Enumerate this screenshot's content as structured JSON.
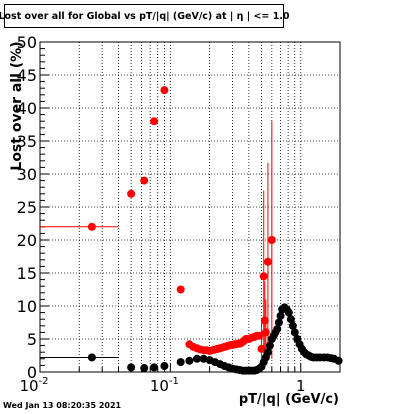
{
  "chart_data": {
    "type": "scatter",
    "title": "Lost over all for Global vs pT/|q| (GeV/c) at |  η | <= 1.0",
    "xlabel": "pT/|q| (GeV/c)",
    "ylabel": "Lost over all (%)",
    "xscale": "log",
    "xlim": [
      0.01,
      2.0
    ],
    "ylim": [
      0,
      50
    ],
    "grid": true,
    "x_tick_labels": [
      {
        "value": 0.01,
        "base": "10",
        "exp": "-2"
      },
      {
        "value": 0.1,
        "base": "10",
        "exp": "-1"
      },
      {
        "value": 1,
        "base": "1",
        "exp": ""
      }
    ],
    "y_ticks": [
      0,
      5,
      10,
      15,
      20,
      25,
      30,
      35,
      40,
      45,
      50
    ],
    "series": [
      {
        "color": "#ff0000",
        "points": [
          {
            "x": 0.025,
            "y": 22.0,
            "xlo": 0.01,
            "xhi": 0.04
          },
          {
            "x": 0.05,
            "y": 27.0
          },
          {
            "x": 0.063,
            "y": 29.0
          },
          {
            "x": 0.075,
            "y": 38.0
          },
          {
            "x": 0.09,
            "y": 42.7
          },
          {
            "x": 0.12,
            "y": 12.5
          },
          {
            "x": 0.14,
            "y": 4.2
          },
          {
            "x": 0.15,
            "y": 3.8
          },
          {
            "x": 0.16,
            "y": 3.6
          },
          {
            "x": 0.17,
            "y": 3.4
          },
          {
            "x": 0.18,
            "y": 3.3
          },
          {
            "x": 0.19,
            "y": 3.3
          },
          {
            "x": 0.2,
            "y": 3.2
          },
          {
            "x": 0.21,
            "y": 3.3
          },
          {
            "x": 0.22,
            "y": 3.4
          },
          {
            "x": 0.23,
            "y": 3.5
          },
          {
            "x": 0.24,
            "y": 3.6
          },
          {
            "x": 0.25,
            "y": 3.7
          },
          {
            "x": 0.26,
            "y": 3.8
          },
          {
            "x": 0.27,
            "y": 3.9
          },
          {
            "x": 0.28,
            "y": 4.0
          },
          {
            "x": 0.29,
            "y": 4.1
          },
          {
            "x": 0.3,
            "y": 4.1
          },
          {
            "x": 0.31,
            "y": 4.2
          },
          {
            "x": 0.32,
            "y": 4.2
          },
          {
            "x": 0.33,
            "y": 4.3
          },
          {
            "x": 0.34,
            "y": 4.3
          },
          {
            "x": 0.35,
            "y": 4.4
          },
          {
            "x": 0.36,
            "y": 4.6
          },
          {
            "x": 0.37,
            "y": 4.8
          },
          {
            "x": 0.38,
            "y": 5.0
          },
          {
            "x": 0.39,
            "y": 5.0
          },
          {
            "x": 0.4,
            "y": 5.0
          },
          {
            "x": 0.42,
            "y": 5.2
          },
          {
            "x": 0.44,
            "y": 5.3
          },
          {
            "x": 0.46,
            "y": 5.5
          },
          {
            "x": 0.48,
            "y": 5.5
          },
          {
            "x": 0.5,
            "y": 3.5,
            "yerr": 4
          },
          {
            "x": 0.52,
            "y": 14.5,
            "yerr": 13
          },
          {
            "x": 0.53,
            "y": 7.8,
            "yerr": 6
          },
          {
            "x": 0.54,
            "y": 6.0,
            "yerr": 5
          },
          {
            "x": 0.56,
            "y": 16.7,
            "yerr": 15
          },
          {
            "x": 0.6,
            "y": 20.0,
            "yerr": 18
          }
        ]
      },
      {
        "color": "#000000",
        "points": [
          {
            "x": 0.025,
            "y": 2.2,
            "xlo": 0.01,
            "xhi": 0.04
          },
          {
            "x": 0.05,
            "y": 0.7
          },
          {
            "x": 0.063,
            "y": 0.6
          },
          {
            "x": 0.075,
            "y": 0.7
          },
          {
            "x": 0.09,
            "y": 0.9
          },
          {
            "x": 0.12,
            "y": 1.5
          },
          {
            "x": 0.14,
            "y": 1.7
          },
          {
            "x": 0.16,
            "y": 2.0
          },
          {
            "x": 0.18,
            "y": 2.0
          },
          {
            "x": 0.2,
            "y": 1.8
          },
          {
            "x": 0.22,
            "y": 1.5
          },
          {
            "x": 0.24,
            "y": 1.2
          },
          {
            "x": 0.26,
            "y": 0.9
          },
          {
            "x": 0.28,
            "y": 0.7
          },
          {
            "x": 0.3,
            "y": 0.5
          },
          {
            "x": 0.32,
            "y": 0.4
          },
          {
            "x": 0.34,
            "y": 0.3
          },
          {
            "x": 0.36,
            "y": 0.2
          },
          {
            "x": 0.38,
            "y": 0.2
          },
          {
            "x": 0.4,
            "y": 0.2
          },
          {
            "x": 0.42,
            "y": 0.2
          },
          {
            "x": 0.44,
            "y": 0.2
          },
          {
            "x": 0.46,
            "y": 0.3
          },
          {
            "x": 0.48,
            "y": 0.5
          },
          {
            "x": 0.5,
            "y": 0.8
          },
          {
            "x": 0.52,
            "y": 1.5
          },
          {
            "x": 0.54,
            "y": 2.2
          },
          {
            "x": 0.56,
            "y": 3.0
          },
          {
            "x": 0.58,
            "y": 4.0
          },
          {
            "x": 0.6,
            "y": 5.0
          },
          {
            "x": 0.62,
            "y": 5.5
          },
          {
            "x": 0.64,
            "y": 6.0
          },
          {
            "x": 0.66,
            "y": 6.5
          },
          {
            "x": 0.68,
            "y": 7.5
          },
          {
            "x": 0.7,
            "y": 8.5
          },
          {
            "x": 0.72,
            "y": 9.5
          },
          {
            "x": 0.75,
            "y": 9.8
          },
          {
            "x": 0.78,
            "y": 9.5
          },
          {
            "x": 0.81,
            "y": 9.0
          },
          {
            "x": 0.84,
            "y": 8.0
          },
          {
            "x": 0.87,
            "y": 7.0
          },
          {
            "x": 0.9,
            "y": 6.0
          },
          {
            "x": 0.94,
            "y": 5.0
          },
          {
            "x": 0.98,
            "y": 4.2
          },
          {
            "x": 1.02,
            "y": 3.5
          },
          {
            "x": 1.06,
            "y": 3.0
          },
          {
            "x": 1.1,
            "y": 2.7
          },
          {
            "x": 1.15,
            "y": 2.5
          },
          {
            "x": 1.2,
            "y": 2.3
          },
          {
            "x": 1.25,
            "y": 2.2
          },
          {
            "x": 1.32,
            "y": 2.2
          },
          {
            "x": 1.4,
            "y": 2.2
          },
          {
            "x": 1.5,
            "y": 2.2
          },
          {
            "x": 1.6,
            "y": 2.2
          },
          {
            "x": 1.7,
            "y": 2.1
          },
          {
            "x": 1.8,
            "y": 2.0
          },
          {
            "x": 1.95,
            "y": 1.7
          }
        ]
      }
    ]
  },
  "footer": {
    "timestamp": "Wed Jan 13 08:20:35 2021"
  }
}
